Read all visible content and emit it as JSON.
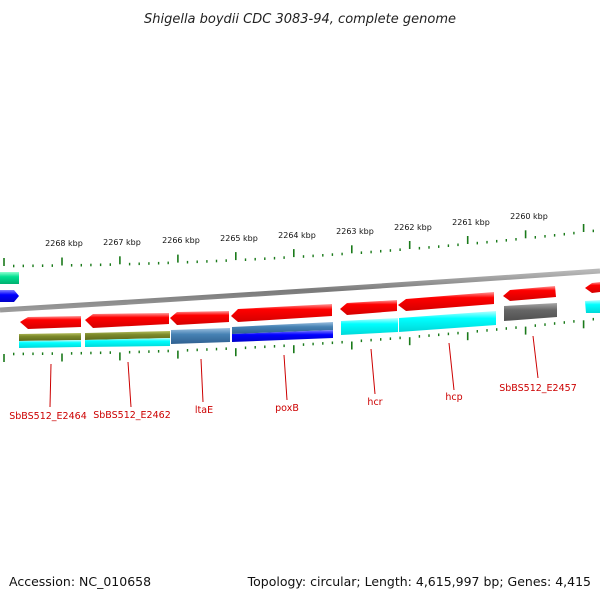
{
  "title": "Shigella boydii CDC 3083-94, complete genome",
  "footer": {
    "accession": "Accession: NC_010658",
    "topology": "Topology: circular; Length: 4,615,997 bp; Genes: 4,415"
  },
  "scale_labels": [
    "2268 kbp",
    "2267 kbp",
    "2266 kbp",
    "2265 kbp",
    "2264 kbp",
    "2263 kbp",
    "2262 kbp",
    "2261 kbp",
    "2260 kbp"
  ],
  "gene_labels": [
    "SbBS512_E2464",
    "SbBS512_E2462",
    "ltaE",
    "poxB",
    "hcr",
    "hcp",
    "SbBS512_E2457"
  ],
  "colors": {
    "backbone": "#8c8c8c",
    "gene_red": "#ff0000",
    "cyan": "#00ffff",
    "steel": "#4682b4",
    "olive": "#7d8a2a",
    "blue": "#0000ff",
    "gray": "#666666",
    "green": "#00c080",
    "tick": "#1a7a1a",
    "label": "#cc0000"
  }
}
